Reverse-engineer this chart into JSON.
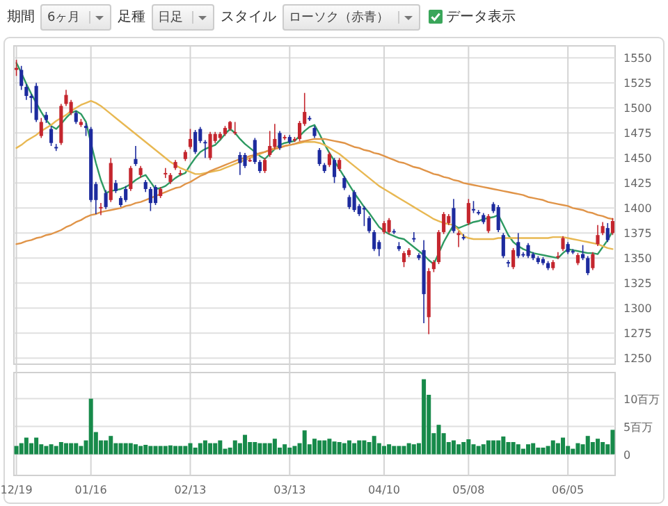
{
  "chart_data": [
    {
      "type": "candlestick",
      "annotations": [
        "期間",
        "6ヶ月",
        "足種",
        "日足",
        "スタイル",
        "ローソク（赤青）",
        "データ表示"
      ],
      "categories": [
        null,
        null,
        null,
        null,
        null,
        null,
        null,
        null,
        null,
        null,
        null,
        null,
        null,
        null,
        null,
        null,
        null,
        null,
        null,
        null,
        null,
        null,
        null,
        null,
        null,
        null,
        null,
        null,
        null,
        null,
        null,
        null,
        null,
        null,
        null,
        null,
        null,
        null,
        null,
        null,
        null,
        null,
        null,
        null,
        null,
        null,
        null,
        null,
        null,
        null,
        null,
        null,
        null,
        null,
        null,
        null,
        null,
        null,
        null,
        null,
        null,
        null,
        null,
        null,
        null,
        null,
        null,
        null,
        null,
        null,
        null,
        null,
        null,
        null,
        null,
        null,
        null,
        null,
        null,
        null,
        null,
        null,
        null,
        null,
        null,
        null,
        null,
        null,
        null,
        null,
        null,
        null,
        null,
        null,
        null,
        null,
        null,
        null,
        null,
        null,
        null,
        null,
        null,
        null,
        null,
        null,
        null,
        null,
        null,
        null,
        null,
        null,
        null,
        null,
        null,
        null,
        null,
        null,
        null,
        null,
        null
      ],
      "ohlc": [
        [
          1538,
          1548,
          1532,
          1540
        ],
        [
          1538,
          1542,
          1518,
          1522
        ],
        [
          1521,
          1524,
          1508,
          1512
        ],
        [
          1512,
          1514,
          1495,
          1510
        ],
        [
          1522,
          1525,
          1486,
          1488
        ],
        [
          1472,
          1490,
          1470,
          1486
        ],
        [
          1493,
          1496,
          1485,
          1488
        ],
        [
          1479,
          1482,
          1462,
          1465
        ],
        [
          1461,
          1464,
          1457,
          1460
        ],
        [
          1465,
          1504,
          1463,
          1502
        ],
        [
          1504,
          1518,
          1502,
          1513
        ],
        [
          1495,
          1508,
          1493,
          1506
        ],
        [
          1495,
          1497,
          1484,
          1486
        ],
        [
          1483,
          1489,
          1481,
          1486
        ],
        [
          1482,
          1485,
          1472,
          1480
        ],
        [
          1479,
          1481,
          1406,
          1408
        ],
        [
          1424,
          1426,
          1394,
          1408
        ],
        [
          1400,
          1405,
          1393,
          1401
        ],
        [
          1415,
          1418,
          1399,
          1401
        ],
        [
          1408,
          1450,
          1406,
          1445
        ],
        [
          1425,
          1428,
          1415,
          1417
        ],
        [
          1410,
          1412,
          1401,
          1403
        ],
        [
          1419,
          1422,
          1406,
          1408
        ],
        [
          1419,
          1442,
          1417,
          1440
        ],
        [
          1449,
          1462,
          1442,
          1444
        ],
        [
          1433,
          1442,
          1430,
          1440
        ],
        [
          1426,
          1428,
          1416,
          1419
        ],
        [
          1419,
          1421,
          1397,
          1405
        ],
        [
          1421,
          1423,
          1403,
          1405
        ],
        [
          1412,
          1421,
          1410,
          1419
        ],
        [
          1434,
          1440,
          1430,
          1435
        ],
        [
          1426,
          1435,
          1424,
          1433
        ],
        [
          1440,
          1448,
          1438,
          1446
        ],
        [
          1434,
          1438,
          1432,
          1435
        ],
        [
          1449,
          1458,
          1447,
          1456
        ],
        [
          1461,
          1479,
          1459,
          1469
        ],
        [
          1476,
          1478,
          1454,
          1456
        ],
        [
          1479,
          1481,
          1465,
          1467
        ],
        [
          1466,
          1468,
          1450,
          1465
        ],
        [
          1450,
          1476,
          1448,
          1474
        ],
        [
          1467,
          1476,
          1465,
          1474
        ],
        [
          1470,
          1476,
          1468,
          1474
        ],
        [
          1474,
          1482,
          1472,
          1480
        ],
        [
          1479,
          1487,
          1477,
          1486
        ],
        [
          1475,
          1486,
          1473,
          1476
        ],
        [
          1453,
          1456,
          1433,
          1445
        ],
        [
          1453,
          1455,
          1440,
          1442
        ],
        [
          1447,
          1450,
          1446,
          1448
        ],
        [
          1468,
          1470,
          1444,
          1446
        ],
        [
          1446,
          1448,
          1435,
          1437
        ],
        [
          1437,
          1450,
          1435,
          1448
        ],
        [
          1453,
          1477,
          1451,
          1462
        ],
        [
          1461,
          1484,
          1459,
          1469
        ],
        [
          1475,
          1477,
          1458,
          1460
        ],
        [
          1470,
          1473,
          1468,
          1471
        ],
        [
          1471,
          1473,
          1464,
          1466
        ],
        [
          1468,
          1471,
          1466,
          1469
        ],
        [
          1469,
          1487,
          1467,
          1485
        ],
        [
          1484,
          1515,
          1482,
          1496
        ],
        [
          1490,
          1492,
          1487,
          1489
        ],
        [
          1480,
          1482,
          1470,
          1472
        ],
        [
          1458,
          1460,
          1442,
          1444
        ],
        [
          1443,
          1445,
          1435,
          1437
        ],
        [
          1443,
          1456,
          1441,
          1454
        ],
        [
          1448,
          1450,
          1425,
          1431
        ],
        [
          1439,
          1450,
          1437,
          1448
        ],
        [
          1430,
          1432,
          1418,
          1420
        ],
        [
          1411,
          1413,
          1399,
          1401
        ],
        [
          1416,
          1418,
          1396,
          1398
        ],
        [
          1402,
          1404,
          1392,
          1394
        ],
        [
          1400,
          1402,
          1382,
          1399
        ],
        [
          1390,
          1392,
          1375,
          1377
        ],
        [
          1376,
          1378,
          1357,
          1359
        ],
        [
          1366,
          1368,
          1352,
          1359
        ],
        [
          1376,
          1387,
          1374,
          1385
        ],
        [
          1376,
          1390,
          1374,
          1388
        ],
        [
          1377,
          1379,
          1374,
          1376
        ],
        [
          1362,
          1366,
          1357,
          1359
        ],
        [
          1346,
          1357,
          1341,
          1355
        ],
        [
          1353,
          1360,
          1351,
          1358
        ],
        [
          1370,
          1376,
          1366,
          1369
        ],
        [
          1353,
          1355,
          1348,
          1350
        ],
        [
          1358,
          1368,
          1285,
          1314
        ],
        [
          1291,
          1340,
          1274,
          1337
        ],
        [
          1339,
          1348,
          1336,
          1346
        ],
        [
          1346,
          1378,
          1344,
          1376
        ],
        [
          1376,
          1396,
          1374,
          1394
        ],
        [
          1385,
          1394,
          1383,
          1392
        ],
        [
          1400,
          1409,
          1375,
          1377
        ],
        [
          1373,
          1377,
          1361,
          1375
        ],
        [
          1371,
          1374,
          1368,
          1370
        ],
        [
          1385,
          1409,
          1383,
          1405
        ],
        [
          1399,
          1407,
          1395,
          1398
        ],
        [
          1396,
          1398,
          1393,
          1395
        ],
        [
          1393,
          1395,
          1384,
          1386
        ],
        [
          1377,
          1394,
          1375,
          1392
        ],
        [
          1404,
          1406,
          1395,
          1397
        ],
        [
          1401,
          1403,
          1376,
          1378
        ],
        [
          1373,
          1375,
          1350,
          1352
        ],
        [
          1346,
          1348,
          1341,
          1345
        ],
        [
          1341,
          1360,
          1339,
          1358
        ],
        [
          1366,
          1375,
          1350,
          1352
        ],
        [
          1354,
          1356,
          1351,
          1353
        ],
        [
          1363,
          1365,
          1350,
          1352
        ],
        [
          1354,
          1356,
          1348,
          1350
        ],
        [
          1350,
          1352,
          1344,
          1346
        ],
        [
          1349,
          1351,
          1343,
          1345
        ],
        [
          1345,
          1347,
          1338,
          1340
        ],
        [
          1340,
          1348,
          1338,
          1346
        ],
        [
          1351,
          1356,
          1349,
          1352
        ],
        [
          1359,
          1372,
          1357,
          1370
        ],
        [
          1364,
          1366,
          1354,
          1356
        ],
        [
          1357,
          1359,
          1354,
          1356
        ],
        [
          1345,
          1355,
          1343,
          1353
        ],
        [
          1354,
          1363,
          1348,
          1350
        ],
        [
          1350,
          1352,
          1333,
          1335
        ],
        [
          1340,
          1356,
          1338,
          1354
        ],
        [
          1364,
          1383,
          1362,
          1373
        ],
        [
          1375,
          1386,
          1373,
          1382
        ],
        [
          1380,
          1385,
          1366,
          1368
        ],
        [
          1375,
          1390,
          1373,
          1387
        ]
      ],
      "colors": [
        "#c4262e",
        "#1d2b9e",
        "#1d2b9e",
        "#1d2b9e",
        "#1d2b9e",
        "#c4262e",
        "#1d2b9e",
        "#1d2b9e",
        "#1d2b9e",
        "#c4262e",
        "#c4262e",
        "#c4262e",
        "#1d2b9e",
        "#c4262e",
        "#1d2b9e",
        "#1d2b9e",
        "#1d2b9e",
        "#c4262e",
        "#1d2b9e",
        "#c4262e",
        "#1d2b9e",
        "#1d2b9e",
        "#1d2b9e",
        "#c4262e",
        "#1d2b9e",
        "#c4262e",
        "#1d2b9e",
        "#1d2b9e",
        "#1d2b9e",
        "#c4262e",
        "#c4262e",
        "#c4262e",
        "#c4262e",
        "#c4262e",
        "#c4262e",
        "#c4262e",
        "#1d2b9e",
        "#1d2b9e",
        "#1d2b9e",
        "#c4262e",
        "#c4262e",
        "#c4262e",
        "#c4262e",
        "#c4262e",
        "#c4262e",
        "#1d2b9e",
        "#1d2b9e",
        "#c4262e",
        "#1d2b9e",
        "#1d2b9e",
        "#c4262e",
        "#c4262e",
        "#c4262e",
        "#1d2b9e",
        "#c4262e",
        "#1d2b9e",
        "#c4262e",
        "#c4262e",
        "#c4262e",
        "#1d2b9e",
        "#1d2b9e",
        "#1d2b9e",
        "#1d2b9e",
        "#c4262e",
        "#1d2b9e",
        "#c4262e",
        "#1d2b9e",
        "#1d2b9e",
        "#1d2b9e",
        "#1d2b9e",
        "#1d2b9e",
        "#1d2b9e",
        "#1d2b9e",
        "#1d2b9e",
        "#c4262e",
        "#c4262e",
        "#1d2b9e",
        "#1d2b9e",
        "#c4262e",
        "#c4262e",
        "#1d2b9e",
        "#1d2b9e",
        "#1d2b9e",
        "#c4262e",
        "#c4262e",
        "#c4262e",
        "#c4262e",
        "#c4262e",
        "#1d2b9e",
        "#c4262e",
        "#1d2b9e",
        "#c4262e",
        "#1d2b9e",
        "#1d2b9e",
        "#1d2b9e",
        "#c4262e",
        "#1d2b9e",
        "#1d2b9e",
        "#1d2b9e",
        "#1d2b9e",
        "#c4262e",
        "#1d2b9e",
        "#1d2b9e",
        "#1d2b9e",
        "#1d2b9e",
        "#1d2b9e",
        "#1d2b9e",
        "#1d2b9e",
        "#c4262e",
        "#c4262e",
        "#c4262e",
        "#1d2b9e",
        "#1d2b9e",
        "#c4262e",
        "#1d2b9e",
        "#1d2b9e",
        "#c4262e",
        "#c4262e",
        "#c4262e",
        "#1d2b9e",
        "#c4262e"
      ],
      "series": [
        {
          "type": "line",
          "color": "#2e9a62",
          "values": [
            1545,
            1535,
            1524,
            1514,
            1505,
            1496,
            1488,
            1482,
            1479,
            1484,
            1490,
            1495,
            1497,
            1494,
            1486,
            1465,
            1445,
            1428,
            1415,
            1417,
            1418,
            1419,
            1421,
            1424,
            1428,
            1431,
            1433,
            1426,
            1419,
            1420,
            1422,
            1426,
            1430,
            1433,
            1435,
            1443,
            1450,
            1456,
            1459,
            1461,
            1463,
            1468,
            1474,
            1479,
            1475,
            1469,
            1464,
            1460,
            1456,
            1452,
            1449,
            1454,
            1459,
            1463,
            1465,
            1466,
            1467,
            1472,
            1477,
            1481,
            1483,
            1474,
            1464,
            1455,
            1447,
            1439,
            1431,
            1423,
            1415,
            1408,
            1401,
            1395,
            1388,
            1381,
            1377,
            1374,
            1372,
            1370,
            1369,
            1365,
            1361,
            1357,
            1353,
            1348,
            1344,
            1355,
            1366,
            1375,
            1383,
            1380,
            1382,
            1384,
            1386,
            1387,
            1389,
            1390,
            1391,
            1393,
            1383,
            1373,
            1366,
            1362,
            1359,
            1357,
            1355,
            1354,
            1353,
            1352,
            1351,
            1350,
            1355,
            1359,
            1358,
            1357,
            1356,
            1355,
            1355,
            1354,
            1361,
            1368,
            1377
          ]
        },
        {
          "type": "line",
          "color": "#e8b852",
          "values": [
            1460,
            1463,
            1467,
            1470,
            1473,
            1477,
            1480,
            1483,
            1487,
            1490,
            1493,
            1497,
            1500,
            1503,
            1505,
            1507,
            1505,
            1502,
            1498,
            1494,
            1490,
            1486,
            1482,
            1478,
            1474,
            1470,
            1466,
            1462,
            1458,
            1454,
            1450,
            1446,
            1443,
            1440,
            1438,
            1436,
            1434,
            1434,
            1435,
            1436,
            1437,
            1438,
            1440,
            1442,
            1444,
            1446,
            1448,
            1450,
            1452,
            1454,
            1456,
            1458,
            1460,
            1461,
            1462,
            1463,
            1464,
            1465,
            1466,
            1466,
            1466,
            1465,
            1463,
            1460,
            1457,
            1454,
            1450,
            1446,
            1442,
            1438,
            1434,
            1430,
            1426,
            1422,
            1419,
            1416,
            1413,
            1410,
            1407,
            1404,
            1401,
            1398,
            1395,
            1392,
            1389,
            1387,
            1385,
            1384,
            1383,
            1378,
            1372,
            1370,
            1369,
            1369,
            1369,
            1369,
            1369,
            1370,
            1370,
            1370,
            1370,
            1370,
            1370,
            1370,
            1370,
            1370,
            1370,
            1370,
            1371,
            1371,
            1371,
            1370,
            1369,
            1368,
            1367,
            1366,
            1365,
            1364,
            1362,
            1360,
            1359
          ]
        },
        {
          "type": "line",
          "color": "#e09448",
          "values": [
            1364,
            1365,
            1367,
            1368,
            1370,
            1371,
            1373,
            1374,
            1376,
            1378,
            1381,
            1383,
            1386,
            1388,
            1391,
            1393,
            1394,
            1396,
            1397,
            1398,
            1399,
            1400,
            1402,
            1403,
            1405,
            1406,
            1408,
            1410,
            1412,
            1414,
            1416,
            1418,
            1420,
            1421,
            1424,
            1426,
            1429,
            1432,
            1434,
            1437,
            1439,
            1441,
            1443,
            1445,
            1447,
            1449,
            1450,
            1452,
            1453,
            1455,
            1456,
            1458,
            1459,
            1460,
            1462,
            1463,
            1464,
            1466,
            1467,
            1468,
            1469,
            1469,
            1469,
            1468,
            1467,
            1466,
            1465,
            1463,
            1461,
            1460,
            1458,
            1457,
            1455,
            1454,
            1452,
            1450,
            1448,
            1446,
            1445,
            1443,
            1441,
            1440,
            1438,
            1436,
            1434,
            1433,
            1431,
            1430,
            1428,
            1427,
            1425,
            1424,
            1423,
            1422,
            1421,
            1420,
            1419,
            1418,
            1417,
            1416,
            1415,
            1414,
            1413,
            1411,
            1410,
            1409,
            1408,
            1406,
            1405,
            1404,
            1403,
            1402,
            1400,
            1399,
            1398,
            1396,
            1395,
            1393,
            1392,
            1390,
            1389
          ]
        }
      ],
      "ylim": [
        1244,
        1562
      ],
      "yticks": [
        1250,
        1275,
        1300,
        1325,
        1350,
        1375,
        1400,
        1425,
        1450,
        1475,
        1500,
        1525,
        1550
      ],
      "grid": true,
      "tick_labels": "y"
    },
    {
      "type": "bar",
      "color": "#178a4a",
      "categories": [
        "12/19",
        null,
        null,
        null,
        null,
        null,
        null,
        null,
        null,
        null,
        null,
        null,
        null,
        null,
        null,
        "01/16",
        null,
        null,
        null,
        null,
        null,
        null,
        null,
        null,
        null,
        null,
        null,
        null,
        null,
        null,
        null,
        null,
        null,
        null,
        null,
        "02/13",
        null,
        null,
        null,
        null,
        null,
        null,
        null,
        null,
        null,
        null,
        null,
        null,
        null,
        null,
        null,
        null,
        null,
        null,
        null,
        "03/13",
        null,
        null,
        null,
        null,
        null,
        null,
        null,
        null,
        null,
        null,
        null,
        null,
        null,
        null,
        null,
        null,
        null,
        null,
        "04/10",
        null,
        null,
        null,
        null,
        null,
        null,
        null,
        null,
        null,
        null,
        null,
        null,
        null,
        null,
        null,
        null,
        "05/08",
        null,
        null,
        null,
        null,
        null,
        null,
        null,
        null,
        null,
        null,
        null,
        null,
        null,
        null,
        null,
        null,
        null,
        null,
        null,
        "06/05",
        null,
        null,
        null,
        null,
        null,
        null,
        null,
        null,
        null
      ],
      "values": [
        1.5,
        2,
        3,
        2,
        3,
        1.8,
        1.5,
        1.8,
        1.5,
        2.2,
        2,
        2,
        2,
        1.5,
        2.5,
        10,
        4.0,
        2.5,
        2.5,
        3.3,
        2,
        2,
        2,
        2,
        1.8,
        1.5,
        1.7,
        1.5,
        1.5,
        1.5,
        1.5,
        1.6,
        1.5,
        1.5,
        1.5,
        2,
        1.2,
        2,
        2.5,
        2,
        2,
        2.5,
        1,
        1.2,
        2.5,
        2,
        3.5,
        2.2,
        2.2,
        2,
        2,
        2,
        2.8,
        1.2,
        1.8,
        1.2,
        1.5,
        2,
        4.3,
        1.8,
        2.8,
        2.5,
        2.5,
        2.8,
        2.3,
        2.2,
        2,
        2.5,
        2,
        2.5,
        2.5,
        2.2,
        3.3,
        2,
        1.5,
        1.8,
        1.5,
        1.5,
        1.5,
        2,
        1.8,
        2,
        13.5,
        10.7,
        3.8,
        5.3,
        3.8,
        2.2,
        2.5,
        1.8,
        2.2,
        2.7,
        1.8,
        1.5,
        1.8,
        2.5,
        2.5,
        2.5,
        3.2,
        2.2,
        2.2,
        1.8,
        1,
        1.8,
        2,
        1.2,
        1.2,
        1.5,
        2.5,
        2,
        3.0,
        1.5,
        1,
        2,
        1.8,
        3.3,
        2.2,
        2.8,
        2.2,
        1.8,
        4.4
      ],
      "ylim": [
        -3.8,
        14.7
      ],
      "yticks": [
        0,
        {
          "value": 5,
          "label": "5百万"
        },
        {
          "value": 10,
          "label": "10百万"
        }
      ],
      "grid": true
    }
  ]
}
